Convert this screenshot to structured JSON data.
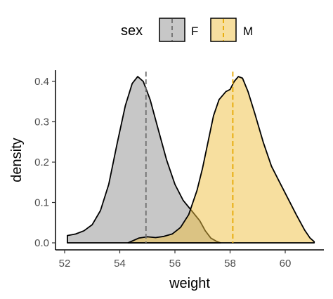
{
  "chart_data": {
    "type": "area",
    "xlabel": "weight",
    "ylabel": "density",
    "xlim": [
      51.9,
      61.1
    ],
    "ylim": [
      0,
      0.42
    ],
    "x_ticks": [
      52,
      54,
      56,
      58,
      60
    ],
    "y_ticks": [
      0.0,
      0.1,
      0.2,
      0.3,
      0.4
    ],
    "x_tick_labels": [
      "52",
      "54",
      "56",
      "58",
      "60"
    ],
    "y_tick_labels": [
      "0.0",
      "0.1",
      "0.2",
      "0.3",
      "0.4"
    ],
    "grid": false,
    "legend": {
      "title": "sex",
      "position": "top",
      "entries": [
        "F",
        "M"
      ]
    },
    "series": [
      {
        "name": "F",
        "fill": "#999999",
        "fill_opacity": 0.55,
        "line_color": "#000000",
        "mean": 54.95,
        "mean_line_color": "#6e6e6e",
        "points": [
          [
            52.1,
            0.018
          ],
          [
            52.4,
            0.022
          ],
          [
            52.7,
            0.03
          ],
          [
            53.0,
            0.045
          ],
          [
            53.3,
            0.08
          ],
          [
            53.6,
            0.145
          ],
          [
            53.9,
            0.245
          ],
          [
            54.2,
            0.34
          ],
          [
            54.45,
            0.395
          ],
          [
            54.65,
            0.412
          ],
          [
            54.85,
            0.4
          ],
          [
            55.1,
            0.355
          ],
          [
            55.4,
            0.28
          ],
          [
            55.7,
            0.205
          ],
          [
            56.0,
            0.145
          ],
          [
            56.3,
            0.105
          ],
          [
            56.6,
            0.08
          ],
          [
            56.9,
            0.055
          ],
          [
            57.1,
            0.03
          ],
          [
            57.3,
            0.012
          ],
          [
            57.5,
            0.004
          ],
          [
            57.65,
            0.0
          ]
        ]
      },
      {
        "name": "M",
        "fill": "#f0c040",
        "fill_opacity": 0.5,
        "line_color": "#000000",
        "mean": 58.1,
        "mean_line_color": "#e6a800",
        "points": [
          [
            54.3,
            0.0
          ],
          [
            54.7,
            0.012
          ],
          [
            55.0,
            0.015
          ],
          [
            55.3,
            0.013
          ],
          [
            55.6,
            0.016
          ],
          [
            55.9,
            0.022
          ],
          [
            56.2,
            0.038
          ],
          [
            56.5,
            0.07
          ],
          [
            56.8,
            0.13
          ],
          [
            57.0,
            0.185
          ],
          [
            57.2,
            0.25
          ],
          [
            57.4,
            0.315
          ],
          [
            57.6,
            0.355
          ],
          [
            57.85,
            0.375
          ],
          [
            58.0,
            0.38
          ],
          [
            58.15,
            0.4
          ],
          [
            58.3,
            0.412
          ],
          [
            58.45,
            0.408
          ],
          [
            58.65,
            0.375
          ],
          [
            58.9,
            0.32
          ],
          [
            59.2,
            0.25
          ],
          [
            59.5,
            0.19
          ],
          [
            59.8,
            0.15
          ],
          [
            60.1,
            0.11
          ],
          [
            60.4,
            0.07
          ],
          [
            60.7,
            0.032
          ],
          [
            60.9,
            0.012
          ],
          [
            61.05,
            0.003
          ]
        ]
      }
    ]
  }
}
